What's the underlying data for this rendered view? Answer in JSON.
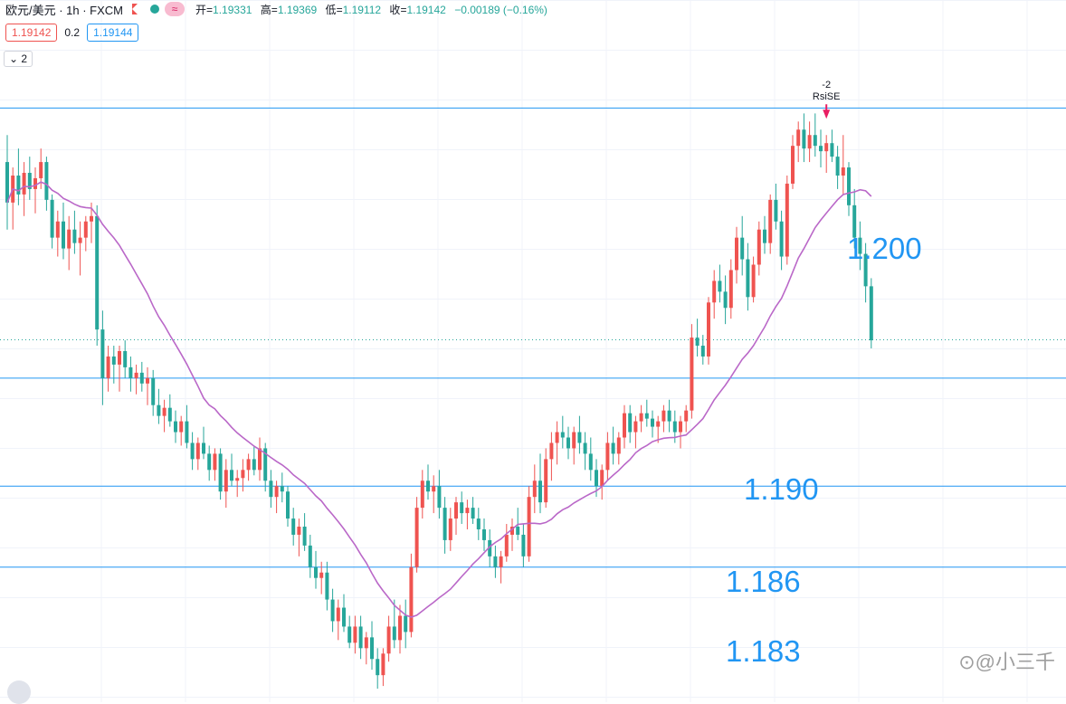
{
  "header": {
    "symbol": "欧元/美元 · 1h · FXCM",
    "indicator_icon": "≈",
    "ohlc": {
      "open_label": "开",
      "open": "1.19331",
      "high_label": "高",
      "high": "1.19369",
      "low_label": "低",
      "low": "1.19112",
      "close_label": "收",
      "close": "1.19142",
      "change": "−0.00189 (−0.16%)"
    }
  },
  "quote": {
    "bid": "1.19142",
    "spread": "0.2",
    "ask": "1.19144"
  },
  "indicator_toggle": "⌄ 2",
  "watermark": "⊙@小三千",
  "colors": {
    "up": "#ef5350",
    "down": "#26a69a",
    "ma": "#ba68c8",
    "level": "#2196f3"
  },
  "chart_data": {
    "type": "candlestick",
    "ohlc": [
      [
        1.198,
        1.199,
        1.1955,
        1.1965
      ],
      [
        1.1965,
        1.1978,
        1.1955,
        1.1975
      ],
      [
        1.1975,
        1.1985,
        1.1964,
        1.1968
      ],
      [
        1.1968,
        1.198,
        1.196,
        1.1976
      ],
      [
        1.1976,
        1.1982,
        1.1966,
        1.197
      ],
      [
        1.197,
        1.1978,
        1.1961,
        1.1974
      ],
      [
        1.1974,
        1.1985,
        1.197,
        1.198
      ],
      [
        1.198,
        1.1982,
        1.1962,
        1.1966
      ],
      [
        1.1966,
        1.1968,
        1.1948,
        1.1952
      ],
      [
        1.1952,
        1.1962,
        1.1945,
        1.1958
      ],
      [
        1.1958,
        1.1965,
        1.1944,
        1.1948
      ],
      [
        1.1948,
        1.196,
        1.194,
        1.1955
      ],
      [
        1.1955,
        1.1962,
        1.1946,
        1.195
      ],
      [
        1.195,
        1.1958,
        1.1938,
        1.1952
      ],
      [
        1.1952,
        1.196,
        1.1947,
        1.1958
      ],
      [
        1.1958,
        1.1965,
        1.195,
        1.196
      ],
      [
        1.196,
        1.1964,
        1.1912,
        1.1918
      ],
      [
        1.1918,
        1.1925,
        1.189,
        1.19
      ],
      [
        1.19,
        1.1912,
        1.1895,
        1.1908
      ],
      [
        1.1908,
        1.1912,
        1.1898,
        1.1905
      ],
      [
        1.1905,
        1.1912,
        1.1895,
        1.191
      ],
      [
        1.191,
        1.1914,
        1.19,
        1.1904
      ],
      [
        1.1904,
        1.1908,
        1.1895,
        1.19
      ],
      [
        1.19,
        1.1905,
        1.1894,
        1.1902
      ],
      [
        1.1902,
        1.1906,
        1.1895,
        1.1898
      ],
      [
        1.1898,
        1.1904,
        1.189,
        1.19
      ],
      [
        1.19,
        1.1903,
        1.1886,
        1.189
      ],
      [
        1.189,
        1.1896,
        1.1883,
        1.1886
      ],
      [
        1.1886,
        1.1892,
        1.188,
        1.1889
      ],
      [
        1.1889,
        1.1894,
        1.1882,
        1.1884
      ],
      [
        1.1884,
        1.1888,
        1.1876,
        1.188
      ],
      [
        1.188,
        1.1886,
        1.1875,
        1.1884
      ],
      [
        1.1884,
        1.189,
        1.1874,
        1.1876
      ],
      [
        1.1876,
        1.188,
        1.1866,
        1.187
      ],
      [
        1.187,
        1.1878,
        1.1866,
        1.1876
      ],
      [
        1.1876,
        1.1882,
        1.187,
        1.1872
      ],
      [
        1.1872,
        1.1875,
        1.1862,
        1.1866
      ],
      [
        1.1866,
        1.1874,
        1.1862,
        1.1872
      ],
      [
        1.1872,
        1.1874,
        1.1855,
        1.1858
      ],
      [
        1.1858,
        1.187,
        1.1852,
        1.1866
      ],
      [
        1.1866,
        1.1872,
        1.186,
        1.1862
      ],
      [
        1.1862,
        1.1866,
        1.1856,
        1.1863
      ],
      [
        1.1863,
        1.187,
        1.1858,
        1.1866
      ],
      [
        1.1866,
        1.1872,
        1.1862,
        1.187
      ],
      [
        1.187,
        1.1875,
        1.1864,
        1.1866
      ],
      [
        1.1866,
        1.1878,
        1.1862,
        1.1874
      ],
      [
        1.1874,
        1.1876,
        1.1858,
        1.1862
      ],
      [
        1.1862,
        1.1866,
        1.1852,
        1.1856
      ],
      [
        1.1856,
        1.1862,
        1.185,
        1.186
      ],
      [
        1.186,
        1.1865,
        1.1854,
        1.1858
      ],
      [
        1.1858,
        1.186,
        1.1845,
        1.1848
      ],
      [
        1.1848,
        1.1852,
        1.1838,
        1.1842
      ],
      [
        1.1842,
        1.1848,
        1.1834,
        1.1845
      ],
      [
        1.1845,
        1.185,
        1.1836,
        1.1838
      ],
      [
        1.1838,
        1.1842,
        1.1826,
        1.183
      ],
      [
        1.183,
        1.1836,
        1.1822,
        1.1826
      ],
      [
        1.1826,
        1.1832,
        1.182,
        1.1828
      ],
      [
        1.1828,
        1.1832,
        1.1814,
        1.1818
      ],
      [
        1.1818,
        1.1822,
        1.1806,
        1.181
      ],
      [
        1.181,
        1.1818,
        1.1803,
        1.1815
      ],
      [
        1.1815,
        1.182,
        1.1806,
        1.1808
      ],
      [
        1.1808,
        1.1812,
        1.18,
        1.1802
      ],
      [
        1.1802,
        1.1812,
        1.1798,
        1.1808
      ],
      [
        1.1808,
        1.1812,
        1.1796,
        1.18
      ],
      [
        1.18,
        1.1806,
        1.1794,
        1.1804
      ],
      [
        1.1804,
        1.181,
        1.1792,
        1.1796
      ],
      [
        1.1796,
        1.18,
        1.1785,
        1.179
      ],
      [
        1.179,
        1.18,
        1.1786,
        1.1798
      ],
      [
        1.1798,
        1.1812,
        1.1795,
        1.1808
      ],
      [
        1.1808,
        1.1818,
        1.18,
        1.1803
      ],
      [
        1.1803,
        1.1816,
        1.1798,
        1.1812
      ],
      [
        1.1812,
        1.1818,
        1.18,
        1.1806
      ],
      [
        1.1806,
        1.1835,
        1.1804,
        1.183
      ],
      [
        1.183,
        1.1856,
        1.1828,
        1.1852
      ],
      [
        1.1852,
        1.1866,
        1.1848,
        1.1862
      ],
      [
        1.1862,
        1.1868,
        1.1855,
        1.1858
      ],
      [
        1.1858,
        1.1864,
        1.185,
        1.186
      ],
      [
        1.186,
        1.1866,
        1.1848,
        1.1852
      ],
      [
        1.1852,
        1.1856,
        1.1835,
        1.184
      ],
      [
        1.184,
        1.1852,
        1.1836,
        1.1848
      ],
      [
        1.1848,
        1.1856,
        1.1842,
        1.1854
      ],
      [
        1.1854,
        1.1858,
        1.1846,
        1.185
      ],
      [
        1.185,
        1.1855,
        1.1844,
        1.1852
      ],
      [
        1.1852,
        1.1856,
        1.1846,
        1.1848
      ],
      [
        1.1848,
        1.1852,
        1.184,
        1.1844
      ],
      [
        1.1844,
        1.1848,
        1.1836,
        1.184
      ],
      [
        1.184,
        1.1844,
        1.183,
        1.1834
      ],
      [
        1.1834,
        1.1838,
        1.1826,
        1.183
      ],
      [
        1.183,
        1.1836,
        1.1824,
        1.1834
      ],
      [
        1.1834,
        1.1846,
        1.1832,
        1.1842
      ],
      [
        1.1842,
        1.1848,
        1.1836,
        1.1845
      ],
      [
        1.1845,
        1.1852,
        1.184,
        1.1842
      ],
      [
        1.1842,
        1.1846,
        1.183,
        1.1834
      ],
      [
        1.1834,
        1.186,
        1.1832,
        1.1856
      ],
      [
        1.1856,
        1.1868,
        1.185,
        1.1862
      ],
      [
        1.1862,
        1.1872,
        1.185,
        1.1854
      ],
      [
        1.1854,
        1.1874,
        1.1852,
        1.187
      ],
      [
        1.187,
        1.188,
        1.1862,
        1.1876
      ],
      [
        1.1876,
        1.1884,
        1.1868,
        1.188
      ],
      [
        1.188,
        1.1886,
        1.1874,
        1.1878
      ],
      [
        1.1878,
        1.1882,
        1.187,
        1.1874
      ],
      [
        1.1874,
        1.1882,
        1.1868,
        1.188
      ],
      [
        1.188,
        1.1886,
        1.1872,
        1.1876
      ],
      [
        1.1876,
        1.188,
        1.1866,
        1.1872
      ],
      [
        1.1872,
        1.1878,
        1.1862,
        1.1866
      ],
      [
        1.1866,
        1.187,
        1.1856,
        1.186
      ],
      [
        1.186,
        1.1868,
        1.1855,
        1.1866
      ],
      [
        1.1866,
        1.188,
        1.1862,
        1.1876
      ],
      [
        1.1876,
        1.1882,
        1.1868,
        1.1872
      ],
      [
        1.1872,
        1.188,
        1.1868,
        1.1878
      ],
      [
        1.1878,
        1.189,
        1.1874,
        1.1887
      ],
      [
        1.1887,
        1.189,
        1.1876,
        1.188
      ],
      [
        1.188,
        1.1886,
        1.1874,
        1.1884
      ],
      [
        1.1884,
        1.189,
        1.188,
        1.1887
      ],
      [
        1.1887,
        1.1892,
        1.1882,
        1.1885
      ],
      [
        1.1885,
        1.1888,
        1.1878,
        1.1882
      ],
      [
        1.1882,
        1.1886,
        1.1876,
        1.1884
      ],
      [
        1.1884,
        1.189,
        1.188,
        1.1888
      ],
      [
        1.1888,
        1.1892,
        1.188,
        1.1884
      ],
      [
        1.1884,
        1.1888,
        1.1876,
        1.188
      ],
      [
        1.188,
        1.1886,
        1.1874,
        1.1884
      ],
      [
        1.1884,
        1.189,
        1.188,
        1.1888
      ],
      [
        1.1888,
        1.192,
        1.1885,
        1.1915
      ],
      [
        1.1915,
        1.1922,
        1.1908,
        1.1912
      ],
      [
        1.1912,
        1.1916,
        1.1905,
        1.1908
      ],
      [
        1.1908,
        1.193,
        1.1905,
        1.1928
      ],
      [
        1.1928,
        1.194,
        1.1922,
        1.1936
      ],
      [
        1.1936,
        1.1942,
        1.1928,
        1.1932
      ],
      [
        1.1932,
        1.1938,
        1.192,
        1.1926
      ],
      [
        1.1926,
        1.1944,
        1.1922,
        1.194
      ],
      [
        1.194,
        1.1956,
        1.1935,
        1.1952
      ],
      [
        1.1952,
        1.196,
        1.1938,
        1.1944
      ],
      [
        1.1944,
        1.195,
        1.1925,
        1.193
      ],
      [
        1.193,
        1.1945,
        1.1928,
        1.1942
      ],
      [
        1.1942,
        1.1958,
        1.1938,
        1.1955
      ],
      [
        1.1955,
        1.196,
        1.1946,
        1.195
      ],
      [
        1.195,
        1.1968,
        1.1946,
        1.1966
      ],
      [
        1.1966,
        1.1972,
        1.1955,
        1.1958
      ],
      [
        1.1958,
        1.1962,
        1.194,
        1.1945
      ],
      [
        1.1945,
        1.1975,
        1.1942,
        1.1972
      ],
      [
        1.1972,
        1.199,
        1.197,
        1.1986
      ],
      [
        1.1986,
        1.1995,
        1.198,
        1.1992
      ],
      [
        1.1992,
        1.1998,
        1.198,
        1.1985
      ],
      [
        1.1985,
        1.1995,
        1.198,
        1.199
      ],
      [
        1.199,
        1.1998,
        1.1982,
        1.1986
      ],
      [
        1.1986,
        1.1992,
        1.1978,
        1.1984
      ],
      [
        1.1984,
        1.199,
        1.1976,
        1.1987
      ],
      [
        1.1987,
        1.1992,
        1.198,
        1.1982
      ],
      [
        1.1982,
        1.1986,
        1.197,
        1.1975
      ],
      [
        1.1975,
        1.199,
        1.1968,
        1.1978
      ],
      [
        1.1978,
        1.198,
        1.196,
        1.1964
      ],
      [
        1.1964,
        1.197,
        1.1948,
        1.1952
      ],
      [
        1.1952,
        1.1958,
        1.194,
        1.1946
      ],
      [
        1.1946,
        1.195,
        1.1928,
        1.1934
      ],
      [
        1.1934,
        1.1937,
        1.1911,
        1.1914
      ]
    ],
    "ma": {
      "period": 20,
      "label": ""
    },
    "ylim": [
      1.178,
      1.204
    ],
    "horizontal_levels": [
      {
        "value": 1.2,
        "label": "1.200"
      },
      {
        "value": 1.19,
        "label": "1.190"
      },
      {
        "value": 1.186,
        "label": "1.186"
      },
      {
        "value": 1.183,
        "label": "1.183"
      }
    ],
    "last_price": 1.19142,
    "signal": {
      "candle_index": 146,
      "label_top": "-2",
      "label_bottom": "RsiSE"
    },
    "grid": true
  }
}
